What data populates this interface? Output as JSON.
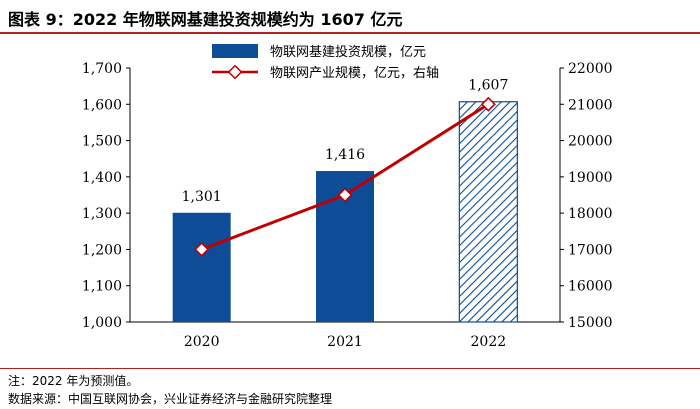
{
  "title": "图表 9：2022 年物联网基建投资规模约为 1607 亿元",
  "note": "注：2022 年为预测值。",
  "source": "数据来源：中国互联网协会，兴业证券经济与金融研究院整理",
  "colors": {
    "bar": "#0d4c96",
    "line": "#c00000",
    "title_rule": "#b22222"
  },
  "chart_data": {
    "type": "bar",
    "categories": [
      "2020",
      "2021",
      "2022"
    ],
    "series": [
      {
        "name": "物联网基建投资规模，亿元",
        "type": "bar",
        "axis": "left",
        "values": [
          1301,
          1416,
          1607
        ],
        "labels": [
          "1,301",
          "1,416",
          "1,607"
        ],
        "forecast": [
          false,
          false,
          true
        ]
      },
      {
        "name": "物联网产业规模，亿元，右轴",
        "type": "line",
        "axis": "right",
        "values": [
          17000,
          18500,
          21000
        ]
      }
    ],
    "y_left": {
      "min": 1000,
      "max": 1700,
      "ticks": [
        "1,000",
        "1,100",
        "1,200",
        "1,300",
        "1,400",
        "1,500",
        "1,600",
        "1,700"
      ]
    },
    "y_right": {
      "min": 15000,
      "max": 22000,
      "ticks": [
        "15000",
        "16000",
        "17000",
        "18000",
        "19000",
        "20000",
        "21000",
        "22000"
      ]
    },
    "legend_position": "top-center"
  }
}
